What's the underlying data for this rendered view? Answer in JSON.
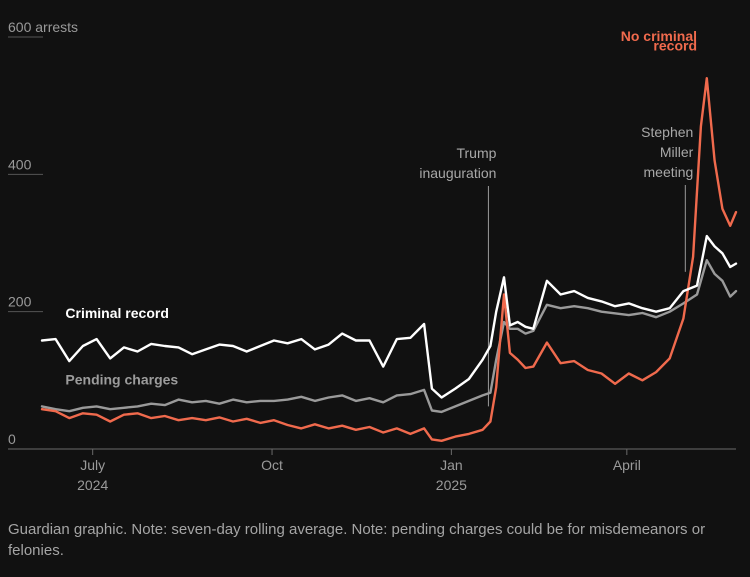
{
  "chart_data": {
    "type": "line",
    "ylim": [
      0,
      600
    ],
    "y_ticks": [
      {
        "value": 600,
        "label": "600 arrests"
      },
      {
        "value": 400,
        "label": "400"
      },
      {
        "value": 200,
        "label": "200"
      },
      {
        "value": 0,
        "label": "0"
      }
    ],
    "x_range": [
      "2024-06-05",
      "2025-05-27"
    ],
    "x_ticks": [
      {
        "date": "2024-07-01",
        "label": "July",
        "sublabel": "2024"
      },
      {
        "date": "2024-10-01",
        "label": "Oct",
        "sublabel": ""
      },
      {
        "date": "2025-01-01",
        "label": "Jan",
        "sublabel": "2025"
      },
      {
        "date": "2025-04-01",
        "label": "April",
        "sublabel": ""
      }
    ],
    "series": [
      {
        "name": "Criminal record",
        "color": "#ffffff",
        "points": [
          [
            "2024-06-05",
            158
          ],
          [
            "2024-06-12",
            160
          ],
          [
            "2024-06-19",
            128
          ],
          [
            "2024-06-26",
            150
          ],
          [
            "2024-07-03",
            160
          ],
          [
            "2024-07-10",
            132
          ],
          [
            "2024-07-17",
            148
          ],
          [
            "2024-07-24",
            142
          ],
          [
            "2024-07-31",
            153
          ],
          [
            "2024-08-07",
            150
          ],
          [
            "2024-08-14",
            148
          ],
          [
            "2024-08-21",
            138
          ],
          [
            "2024-08-28",
            145
          ],
          [
            "2024-09-04",
            152
          ],
          [
            "2024-09-11",
            150
          ],
          [
            "2024-09-18",
            142
          ],
          [
            "2024-09-25",
            150
          ],
          [
            "2024-10-02",
            158
          ],
          [
            "2024-10-09",
            154
          ],
          [
            "2024-10-16",
            160
          ],
          [
            "2024-10-23",
            145
          ],
          [
            "2024-10-30",
            152
          ],
          [
            "2024-11-06",
            168
          ],
          [
            "2024-11-13",
            158
          ],
          [
            "2024-11-20",
            158
          ],
          [
            "2024-11-27",
            120
          ],
          [
            "2024-12-04",
            160
          ],
          [
            "2024-12-11",
            162
          ],
          [
            "2024-12-18",
            182
          ],
          [
            "2024-12-22",
            88
          ],
          [
            "2024-12-27",
            75
          ],
          [
            "2025-01-03",
            88
          ],
          [
            "2025-01-10",
            102
          ],
          [
            "2025-01-17",
            130
          ],
          [
            "2025-01-21",
            150
          ],
          [
            "2025-01-24",
            200
          ],
          [
            "2025-01-28",
            250
          ],
          [
            "2025-01-31",
            180
          ],
          [
            "2025-02-04",
            185
          ],
          [
            "2025-02-08",
            178
          ],
          [
            "2025-02-12",
            175
          ],
          [
            "2025-02-19",
            245
          ],
          [
            "2025-02-26",
            225
          ],
          [
            "2025-03-05",
            230
          ],
          [
            "2025-03-12",
            220
          ],
          [
            "2025-03-19",
            215
          ],
          [
            "2025-03-26",
            208
          ],
          [
            "2025-04-02",
            212
          ],
          [
            "2025-04-09",
            205
          ],
          [
            "2025-04-16",
            200
          ],
          [
            "2025-04-23",
            205
          ],
          [
            "2025-04-30",
            230
          ],
          [
            "2025-05-07",
            238
          ],
          [
            "2025-05-12",
            310
          ],
          [
            "2025-05-16",
            295
          ],
          [
            "2025-05-20",
            285
          ],
          [
            "2025-05-24",
            265
          ],
          [
            "2025-05-27",
            270
          ]
        ]
      },
      {
        "name": "Pending charges",
        "color": "#9a9a9a",
        "points": [
          [
            "2024-06-05",
            62
          ],
          [
            "2024-06-12",
            58
          ],
          [
            "2024-06-19",
            55
          ],
          [
            "2024-06-26",
            60
          ],
          [
            "2024-07-03",
            62
          ],
          [
            "2024-07-10",
            58
          ],
          [
            "2024-07-17",
            60
          ],
          [
            "2024-07-24",
            62
          ],
          [
            "2024-07-31",
            66
          ],
          [
            "2024-08-07",
            64
          ],
          [
            "2024-08-14",
            72
          ],
          [
            "2024-08-21",
            68
          ],
          [
            "2024-08-28",
            70
          ],
          [
            "2024-09-04",
            66
          ],
          [
            "2024-09-11",
            72
          ],
          [
            "2024-09-18",
            68
          ],
          [
            "2024-09-25",
            70
          ],
          [
            "2024-10-02",
            70
          ],
          [
            "2024-10-09",
            72
          ],
          [
            "2024-10-16",
            76
          ],
          [
            "2024-10-23",
            70
          ],
          [
            "2024-10-30",
            75
          ],
          [
            "2024-11-06",
            78
          ],
          [
            "2024-11-13",
            70
          ],
          [
            "2024-11-20",
            74
          ],
          [
            "2024-11-27",
            68
          ],
          [
            "2024-12-04",
            78
          ],
          [
            "2024-12-11",
            80
          ],
          [
            "2024-12-18",
            86
          ],
          [
            "2024-12-22",
            56
          ],
          [
            "2024-12-27",
            54
          ],
          [
            "2025-01-03",
            62
          ],
          [
            "2025-01-10",
            70
          ],
          [
            "2025-01-17",
            78
          ],
          [
            "2025-01-21",
            82
          ],
          [
            "2025-01-24",
            130
          ],
          [
            "2025-01-28",
            185
          ],
          [
            "2025-01-31",
            175
          ],
          [
            "2025-02-04",
            175
          ],
          [
            "2025-02-08",
            168
          ],
          [
            "2025-02-12",
            172
          ],
          [
            "2025-02-19",
            210
          ],
          [
            "2025-02-26",
            205
          ],
          [
            "2025-03-05",
            208
          ],
          [
            "2025-03-12",
            205
          ],
          [
            "2025-03-19",
            200
          ],
          [
            "2025-04-02",
            195
          ],
          [
            "2025-04-09",
            198
          ],
          [
            "2025-04-16",
            192
          ],
          [
            "2025-04-23",
            200
          ],
          [
            "2025-04-30",
            212
          ],
          [
            "2025-05-07",
            225
          ],
          [
            "2025-05-12",
            275
          ],
          [
            "2025-05-16",
            255
          ],
          [
            "2025-05-20",
            245
          ],
          [
            "2025-05-24",
            222
          ],
          [
            "2025-05-27",
            230
          ]
        ]
      },
      {
        "name": "No criminal record",
        "color": "#f06a4d",
        "points": [
          [
            "2024-06-05",
            58
          ],
          [
            "2024-06-12",
            55
          ],
          [
            "2024-06-19",
            45
          ],
          [
            "2024-06-26",
            52
          ],
          [
            "2024-07-03",
            50
          ],
          [
            "2024-07-10",
            40
          ],
          [
            "2024-07-17",
            50
          ],
          [
            "2024-07-24",
            52
          ],
          [
            "2024-07-31",
            45
          ],
          [
            "2024-08-07",
            48
          ],
          [
            "2024-08-14",
            42
          ],
          [
            "2024-08-21",
            45
          ],
          [
            "2024-08-28",
            42
          ],
          [
            "2024-09-04",
            46
          ],
          [
            "2024-09-11",
            40
          ],
          [
            "2024-09-18",
            44
          ],
          [
            "2024-09-25",
            38
          ],
          [
            "2024-10-02",
            42
          ],
          [
            "2024-10-09",
            35
          ],
          [
            "2024-10-16",
            30
          ],
          [
            "2024-10-23",
            36
          ],
          [
            "2024-10-30",
            30
          ],
          [
            "2024-11-06",
            34
          ],
          [
            "2024-11-13",
            28
          ],
          [
            "2024-11-20",
            32
          ],
          [
            "2024-11-27",
            24
          ],
          [
            "2024-12-04",
            30
          ],
          [
            "2024-12-11",
            22
          ],
          [
            "2024-12-18",
            30
          ],
          [
            "2024-12-22",
            14
          ],
          [
            "2024-12-27",
            12
          ],
          [
            "2025-01-03",
            18
          ],
          [
            "2025-01-10",
            22
          ],
          [
            "2025-01-17",
            28
          ],
          [
            "2025-01-21",
            40
          ],
          [
            "2025-01-24",
            90
          ],
          [
            "2025-01-28",
            225
          ],
          [
            "2025-01-31",
            140
          ],
          [
            "2025-02-04",
            130
          ],
          [
            "2025-02-08",
            118
          ],
          [
            "2025-02-12",
            120
          ],
          [
            "2025-02-19",
            155
          ],
          [
            "2025-02-26",
            125
          ],
          [
            "2025-03-05",
            128
          ],
          [
            "2025-03-12",
            115
          ],
          [
            "2025-03-19",
            110
          ],
          [
            "2025-03-26",
            95
          ],
          [
            "2025-04-02",
            110
          ],
          [
            "2025-04-09",
            100
          ],
          [
            "2025-04-16",
            112
          ],
          [
            "2025-04-23",
            132
          ],
          [
            "2025-04-30",
            190
          ],
          [
            "2025-05-05",
            280
          ],
          [
            "2025-05-09",
            470
          ],
          [
            "2025-05-12",
            540
          ],
          [
            "2025-05-16",
            420
          ],
          [
            "2025-05-20",
            350
          ],
          [
            "2025-05-24",
            325
          ],
          [
            "2025-05-27",
            345
          ]
        ]
      }
    ],
    "series_labels": [
      {
        "text": "Criminal record",
        "class": "lbl-white",
        "date": "2024-06-17",
        "value": 191
      },
      {
        "text": "Pending charges",
        "class": "lbl-grey",
        "date": "2024-06-17",
        "value": 94
      },
      {
        "text": "No criminal",
        "class": "lbl-red",
        "date": "2025-05-07",
        "value": 594,
        "anchor": "end"
      },
      {
        "text": "record",
        "class": "lbl-red",
        "date": "2025-05-07",
        "value": 580,
        "anchor": "end"
      }
    ],
    "annotations": [
      {
        "lines": [
          "Trump",
          "inauguration"
        ],
        "date": "2025-01-20",
        "line_to": 62
      },
      {
        "lines": [
          "Stephen",
          "Miller",
          "meeting"
        ],
        "date": "2025-05-01",
        "line_to": 258
      }
    ]
  },
  "note": "Guardian graphic. Note: seven-day rolling average. Note: pending charges could be for misdemeanors or felonies."
}
